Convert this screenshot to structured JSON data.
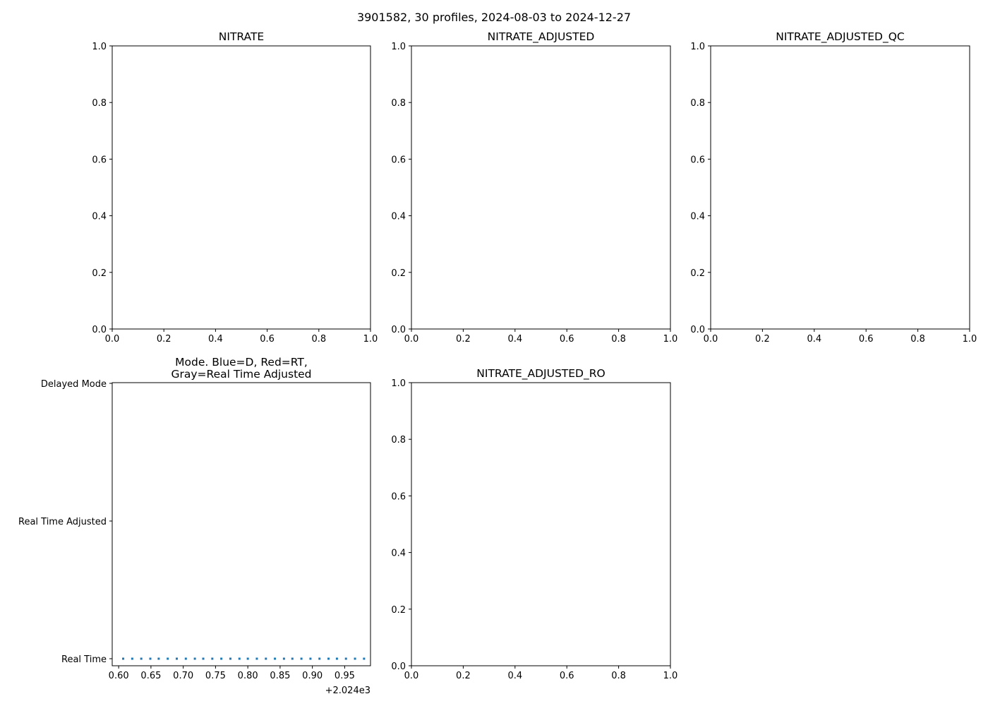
{
  "figure": {
    "suptitle": "3901582, 30 profiles, 2024-08-03 to 2024-12-27"
  },
  "chart_data": [
    {
      "type": "scatter",
      "title": "NITRATE",
      "xlim": [
        0,
        1
      ],
      "ylim": [
        0,
        1
      ],
      "xticks": [
        "0.0",
        "0.2",
        "0.4",
        "0.6",
        "0.8",
        "1.0"
      ],
      "yticks": [
        "0.0",
        "0.2",
        "0.4",
        "0.6",
        "0.8",
        "1.0"
      ],
      "series": []
    },
    {
      "type": "scatter",
      "title": "NITRATE_ADJUSTED",
      "xlim": [
        0,
        1
      ],
      "ylim": [
        0,
        1
      ],
      "xticks": [
        "0.0",
        "0.2",
        "0.4",
        "0.6",
        "0.8",
        "1.0"
      ],
      "yticks": [
        "0.0",
        "0.2",
        "0.4",
        "0.6",
        "0.8",
        "1.0"
      ],
      "series": []
    },
    {
      "type": "scatter",
      "title": "NITRATE_ADJUSTED_QC",
      "xlim": [
        0,
        1
      ],
      "ylim": [
        0,
        1
      ],
      "xticks": [
        "0.0",
        "0.2",
        "0.4",
        "0.6",
        "0.8",
        "1.0"
      ],
      "yticks": [
        "0.0",
        "0.2",
        "0.4",
        "0.6",
        "0.8",
        "1.0"
      ],
      "series": []
    },
    {
      "type": "scatter",
      "title_lines": [
        "Mode. Blue=D, Red=RT,",
        "Gray=Real Time Adjusted"
      ],
      "xlim": [
        0.59,
        0.99
      ],
      "xticks": [
        "0.60",
        "0.65",
        "0.70",
        "0.75",
        "0.80",
        "0.85",
        "0.90",
        "0.95"
      ],
      "x_offset_label": "+2.024e3",
      "ycategories": [
        "Real Time",
        "Real Time Adjusted",
        "Delayed Mode"
      ],
      "series": [
        {
          "color": "#1f77b4",
          "y": "Real Time",
          "x": [
            0.607,
            0.621,
            0.635,
            0.649,
            0.662,
            0.676,
            0.69,
            0.704,
            0.718,
            0.731,
            0.745,
            0.759,
            0.773,
            0.787,
            0.8,
            0.814,
            0.828,
            0.842,
            0.856,
            0.869,
            0.883,
            0.897,
            0.911,
            0.925,
            0.938,
            0.952,
            0.966,
            0.98,
            0.993,
            0.999
          ]
        }
      ]
    },
    {
      "type": "scatter",
      "title": "NITRATE_ADJUSTED_RO",
      "xlim": [
        0,
        1
      ],
      "ylim": [
        0,
        1
      ],
      "xticks": [
        "0.0",
        "0.2",
        "0.4",
        "0.6",
        "0.8",
        "1.0"
      ],
      "yticks": [
        "0.0",
        "0.2",
        "0.4",
        "0.6",
        "0.8",
        "1.0"
      ],
      "series": []
    }
  ]
}
